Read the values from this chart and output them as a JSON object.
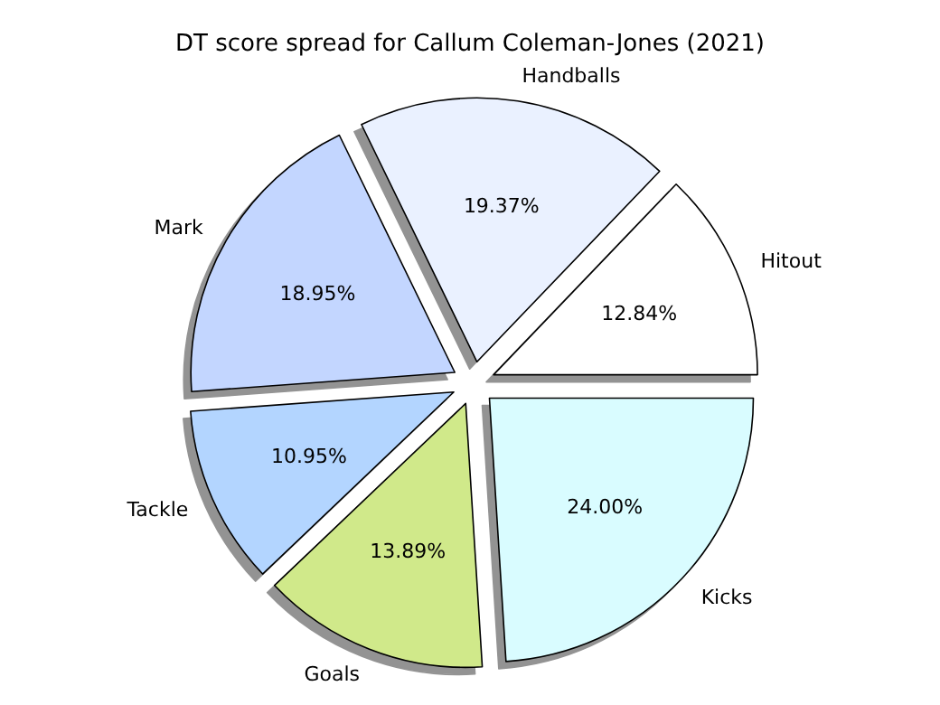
{
  "chart_data": {
    "type": "pie",
    "title": "DT score spread for Callum Coleman-Jones (2021)",
    "categories": [
      "Hitout",
      "Handballs",
      "Mark",
      "Tackle",
      "Goals",
      "Kicks"
    ],
    "values": [
      12.84,
      19.37,
      18.95,
      10.95,
      13.89,
      24.0
    ],
    "value_labels": [
      "12.84%",
      "19.37%",
      "18.95%",
      "10.95%",
      "13.89%",
      "24.00%"
    ],
    "colors": [
      "#ffffff",
      "#eaf1ff",
      "#c3d6ff",
      "#b3d5ff",
      "#d0e98a",
      "#d9fcff"
    ]
  }
}
